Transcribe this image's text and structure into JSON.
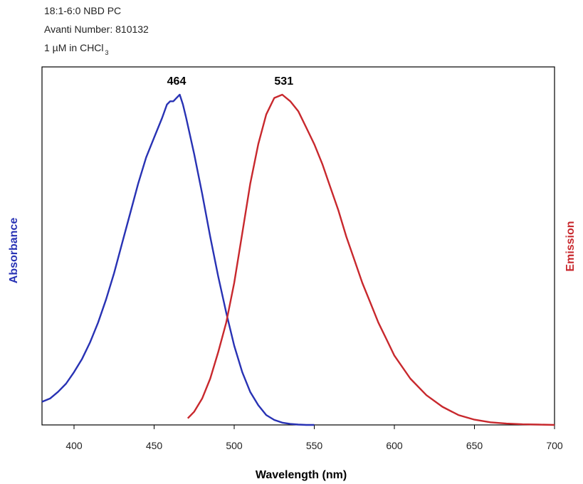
{
  "header": {
    "line1": "18:1-6:0 NBD PC",
    "line2": "Avanti Number:  810132",
    "line3_main": "1 µM in CHCl",
    "line3_sub": "3"
  },
  "colors": {
    "absorbance": "#2832b4",
    "emission": "#c8282d",
    "axis": "#000000"
  },
  "chart_data": {
    "type": "line",
    "xlabel": "Wavelength (nm)",
    "ylabel_left": "Absorbance",
    "ylabel_right": "Emission",
    "xlim": [
      380,
      700
    ],
    "ylim": [
      0,
      1.0
    ],
    "xticks": [
      400,
      450,
      500,
      550,
      600,
      650,
      700
    ],
    "grid": false,
    "annotations": [
      {
        "text": "464",
        "x": 464,
        "y": 1.0
      },
      {
        "text": "531",
        "x": 531,
        "y": 1.0
      }
    ],
    "series": [
      {
        "name": "Absorbance",
        "color": "#2832b4",
        "x": [
          380,
          385,
          390,
          395,
          400,
          405,
          410,
          415,
          420,
          425,
          430,
          435,
          440,
          445,
          450,
          455,
          458,
          460,
          462,
          464,
          466,
          468,
          470,
          475,
          480,
          485,
          490,
          495,
          500,
          505,
          510,
          515,
          520,
          525,
          530,
          535,
          540,
          545,
          550
        ],
        "y": [
          0.07,
          0.08,
          0.1,
          0.125,
          0.16,
          0.2,
          0.25,
          0.31,
          0.38,
          0.46,
          0.55,
          0.64,
          0.73,
          0.81,
          0.87,
          0.93,
          0.97,
          0.98,
          0.98,
          0.99,
          1.0,
          0.97,
          0.93,
          0.82,
          0.7,
          0.57,
          0.45,
          0.34,
          0.24,
          0.16,
          0.1,
          0.06,
          0.03,
          0.015,
          0.007,
          0.003,
          0.001,
          0.0,
          0.0
        ]
      },
      {
        "name": "Emission",
        "color": "#c8282d",
        "x": [
          471,
          475,
          480,
          485,
          490,
          495,
          500,
          505,
          510,
          515,
          520,
          525,
          530,
          535,
          540,
          545,
          550,
          555,
          560,
          565,
          570,
          575,
          580,
          585,
          590,
          595,
          600,
          610,
          620,
          630,
          640,
          650,
          660,
          670,
          680,
          690,
          700
        ],
        "y": [
          0.02,
          0.04,
          0.08,
          0.14,
          0.22,
          0.31,
          0.43,
          0.58,
          0.73,
          0.85,
          0.94,
          0.99,
          1.0,
          0.98,
          0.95,
          0.9,
          0.85,
          0.79,
          0.72,
          0.65,
          0.57,
          0.5,
          0.43,
          0.37,
          0.31,
          0.26,
          0.21,
          0.14,
          0.09,
          0.055,
          0.03,
          0.016,
          0.008,
          0.004,
          0.002,
          0.001,
          0.0
        ]
      }
    ]
  }
}
